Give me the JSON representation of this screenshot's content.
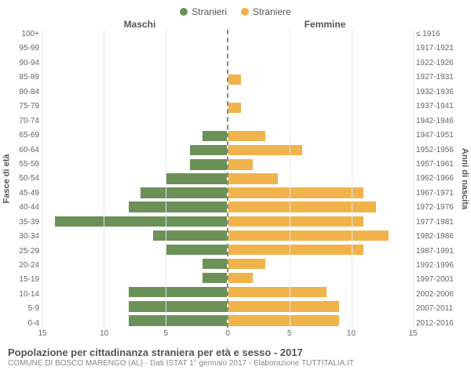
{
  "legend": {
    "male": "Stranieri",
    "female": "Straniere"
  },
  "col_headers": {
    "left": "Maschi",
    "right": "Femmine"
  },
  "yaxis_left_title": "Fasce di età",
  "yaxis_right_title": "Anni di nascita",
  "colors": {
    "male": "#6b9159",
    "female": "#f0b34b",
    "grid": "#e6e6e6",
    "axis_dash": "#888888",
    "text": "#555555",
    "bg": "#ffffff"
  },
  "xlim": 15,
  "xticks_left": [
    15,
    10,
    5,
    0
  ],
  "xticks_right": [
    0,
    5,
    10,
    15
  ],
  "age_labels": [
    "100+",
    "95-99",
    "90-94",
    "85-89",
    "80-84",
    "75-79",
    "70-74",
    "65-69",
    "60-64",
    "55-59",
    "50-54",
    "45-49",
    "40-44",
    "35-39",
    "30-34",
    "25-29",
    "20-24",
    "15-19",
    "10-14",
    "5-9",
    "0-4"
  ],
  "birth_labels": [
    "≤ 1916",
    "1917-1921",
    "1922-1926",
    "1927-1931",
    "1932-1936",
    "1937-1941",
    "1942-1946",
    "1947-1951",
    "1952-1956",
    "1957-1961",
    "1962-1966",
    "1967-1971",
    "1972-1976",
    "1977-1981",
    "1982-1986",
    "1987-1991",
    "1992-1996",
    "1997-2001",
    "2002-2006",
    "2007-2011",
    "2012-2016"
  ],
  "male_values": [
    0,
    0,
    0,
    0,
    0,
    0,
    0,
    2,
    3,
    3,
    5,
    7,
    8,
    14,
    6,
    5,
    2,
    2,
    8,
    8,
    8
  ],
  "female_values": [
    0,
    0,
    0,
    1,
    0,
    1,
    0,
    3,
    6,
    2,
    4,
    11,
    12,
    11,
    13,
    11,
    3,
    2,
    8,
    9,
    9
  ],
  "footer": {
    "title": "Popolazione per cittadinanza straniera per età e sesso - 2017",
    "sub": "COMUNE DI BOSCO MARENGO (AL) - Dati ISTAT 1° gennaio 2017 - Elaborazione TUTTITALIA.IT"
  }
}
